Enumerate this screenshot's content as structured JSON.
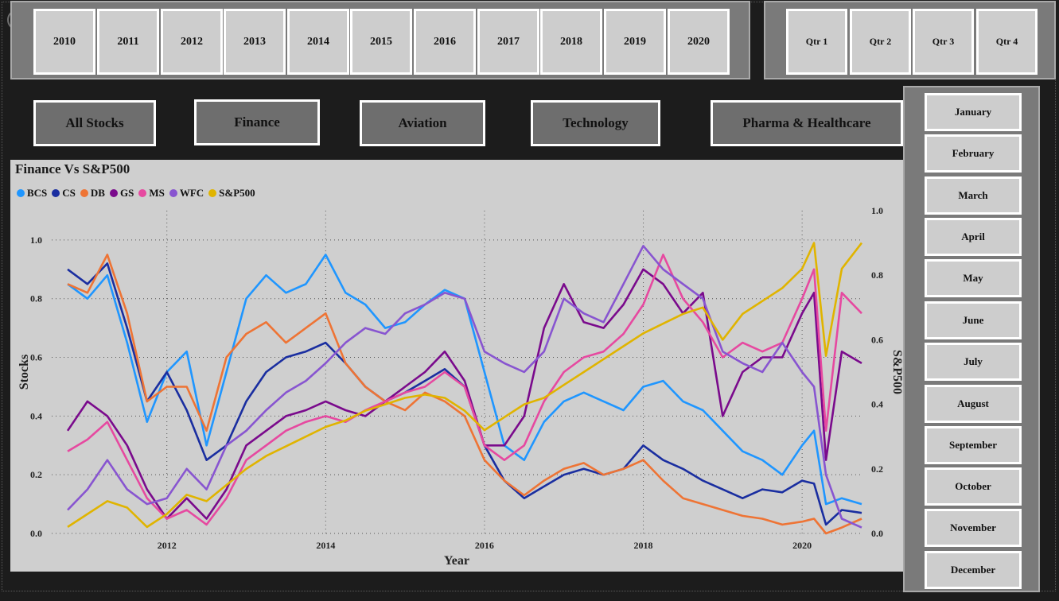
{
  "years": [
    "2010",
    "2011",
    "2012",
    "2013",
    "2014",
    "2015",
    "2016",
    "2017",
    "2018",
    "2019",
    "2020"
  ],
  "quarters": [
    "Qtr 1",
    "Qtr 2",
    "Qtr 3",
    "Qtr 4"
  ],
  "sectors": [
    "All Stocks",
    "Finance",
    "Aviation",
    "Technology",
    "Pharma & Healthcare"
  ],
  "months": [
    "January",
    "February",
    "March",
    "April",
    "May",
    "June",
    "July",
    "August",
    "September",
    "October",
    "November",
    "December"
  ],
  "chart_data": {
    "type": "line",
    "title": "Finance Vs S&P500",
    "xlabel": "Year",
    "ylabel": "Stocks",
    "y2label": "S&P500",
    "xlim": [
      2010.55,
      2020.75
    ],
    "ylim": [
      0,
      1.1
    ],
    "y2lim": [
      0,
      1.0
    ],
    "x_ticks": [
      2012,
      2014,
      2016,
      2018,
      2020
    ],
    "x_tick_labels": [
      "2012",
      "2014",
      "2016",
      "2018",
      "2020"
    ],
    "y_ticks": [
      0,
      0.2,
      0.4,
      0.6,
      0.8,
      1.0
    ],
    "y_tick_labels": [
      "0.0",
      "0.2",
      "0.4",
      "0.6",
      "0.8",
      "1.0"
    ],
    "y2_ticks": [
      0,
      0.2,
      0.4,
      0.6,
      0.8,
      1.0
    ],
    "y2_tick_labels": [
      "0.0",
      "0.2",
      "0.4",
      "0.6",
      "0.8",
      "1.0"
    ],
    "grid": "dotted",
    "legend_position": "top-left",
    "series": [
      {
        "name": "BCS",
        "axis": "left",
        "color": "#1f96ff",
        "x": [
          2010.75,
          2011.0,
          2011.25,
          2011.5,
          2011.75,
          2012.0,
          2012.25,
          2012.5,
          2012.75,
          2013.0,
          2013.25,
          2013.5,
          2013.75,
          2014.0,
          2014.25,
          2014.5,
          2014.75,
          2015.0,
          2015.25,
          2015.5,
          2015.75,
          2016.0,
          2016.25,
          2016.5,
          2016.75,
          2017.0,
          2017.25,
          2017.5,
          2017.75,
          2018.0,
          2018.25,
          2018.5,
          2018.75,
          2019.0,
          2019.25,
          2019.5,
          2019.75,
          2020.0,
          2020.15,
          2020.3,
          2020.5,
          2020.75
        ],
        "y": [
          0.85,
          0.8,
          0.88,
          0.65,
          0.38,
          0.55,
          0.62,
          0.3,
          0.55,
          0.8,
          0.88,
          0.82,
          0.85,
          0.95,
          0.82,
          0.78,
          0.7,
          0.72,
          0.78,
          0.83,
          0.8,
          0.55,
          0.3,
          0.25,
          0.38,
          0.45,
          0.48,
          0.45,
          0.42,
          0.5,
          0.52,
          0.45,
          0.42,
          0.35,
          0.28,
          0.25,
          0.2,
          0.3,
          0.35,
          0.1,
          0.12,
          0.1
        ]
      },
      {
        "name": "CS",
        "axis": "left",
        "color": "#1a2ea0",
        "x": [
          2010.75,
          2011.0,
          2011.25,
          2011.5,
          2011.75,
          2012.0,
          2012.25,
          2012.5,
          2012.75,
          2013.0,
          2013.25,
          2013.5,
          2013.75,
          2014.0,
          2014.25,
          2014.5,
          2014.75,
          2015.0,
          2015.25,
          2015.5,
          2015.75,
          2016.0,
          2016.25,
          2016.5,
          2016.75,
          2017.0,
          2017.25,
          2017.5,
          2017.75,
          2018.0,
          2018.25,
          2018.5,
          2018.75,
          2019.0,
          2019.25,
          2019.5,
          2019.75,
          2020.0,
          2020.15,
          2020.3,
          2020.5,
          2020.75
        ],
        "y": [
          0.9,
          0.85,
          0.92,
          0.7,
          0.45,
          0.55,
          0.42,
          0.25,
          0.3,
          0.45,
          0.55,
          0.6,
          0.62,
          0.65,
          0.58,
          0.5,
          0.45,
          0.48,
          0.52,
          0.56,
          0.5,
          0.3,
          0.18,
          0.12,
          0.16,
          0.2,
          0.22,
          0.2,
          0.22,
          0.3,
          0.25,
          0.22,
          0.18,
          0.15,
          0.12,
          0.15,
          0.14,
          0.18,
          0.17,
          0.03,
          0.08,
          0.07
        ]
      },
      {
        "name": "DB",
        "axis": "left",
        "color": "#ee7435",
        "x": [
          2010.75,
          2011.0,
          2011.25,
          2011.5,
          2011.75,
          2012.0,
          2012.25,
          2012.5,
          2012.75,
          2013.0,
          2013.25,
          2013.5,
          2013.75,
          2014.0,
          2014.25,
          2014.5,
          2014.75,
          2015.0,
          2015.25,
          2015.5,
          2015.75,
          2016.0,
          2016.25,
          2016.5,
          2016.75,
          2017.0,
          2017.25,
          2017.5,
          2017.75,
          2018.0,
          2018.25,
          2018.5,
          2018.75,
          2019.0,
          2019.25,
          2019.5,
          2019.75,
          2020.0,
          2020.15,
          2020.3,
          2020.5,
          2020.75
        ],
        "y": [
          0.85,
          0.82,
          0.95,
          0.75,
          0.45,
          0.5,
          0.5,
          0.35,
          0.6,
          0.68,
          0.72,
          0.65,
          0.7,
          0.75,
          0.58,
          0.5,
          0.45,
          0.42,
          0.48,
          0.45,
          0.4,
          0.25,
          0.18,
          0.13,
          0.18,
          0.22,
          0.24,
          0.2,
          0.22,
          0.25,
          0.18,
          0.12,
          0.1,
          0.08,
          0.06,
          0.05,
          0.03,
          0.04,
          0.05,
          0.0,
          0.02,
          0.05
        ]
      },
      {
        "name": "GS",
        "axis": "left",
        "color": "#7a0a8c",
        "x": [
          2010.75,
          2011.0,
          2011.25,
          2011.5,
          2011.75,
          2012.0,
          2012.25,
          2012.5,
          2012.75,
          2013.0,
          2013.25,
          2013.5,
          2013.75,
          2014.0,
          2014.25,
          2014.5,
          2014.75,
          2015.0,
          2015.25,
          2015.5,
          2015.75,
          2016.0,
          2016.25,
          2016.5,
          2016.75,
          2017.0,
          2017.25,
          2017.5,
          2017.75,
          2018.0,
          2018.25,
          2018.5,
          2018.75,
          2019.0,
          2019.25,
          2019.5,
          2019.75,
          2020.0,
          2020.15,
          2020.3,
          2020.5,
          2020.75
        ],
        "y": [
          0.35,
          0.45,
          0.4,
          0.3,
          0.15,
          0.05,
          0.12,
          0.05,
          0.15,
          0.3,
          0.35,
          0.4,
          0.42,
          0.45,
          0.42,
          0.4,
          0.45,
          0.5,
          0.55,
          0.62,
          0.52,
          0.3,
          0.3,
          0.4,
          0.7,
          0.85,
          0.72,
          0.7,
          0.78,
          0.9,
          0.85,
          0.75,
          0.82,
          0.4,
          0.55,
          0.6,
          0.6,
          0.75,
          0.82,
          0.25,
          0.62,
          0.58
        ]
      },
      {
        "name": "MS",
        "axis": "left",
        "color": "#e649a0",
        "x": [
          2010.75,
          2011.0,
          2011.25,
          2011.5,
          2011.75,
          2012.0,
          2012.25,
          2012.5,
          2012.75,
          2013.0,
          2013.25,
          2013.5,
          2013.75,
          2014.0,
          2014.25,
          2014.5,
          2014.75,
          2015.0,
          2015.25,
          2015.5,
          2015.75,
          2016.0,
          2016.25,
          2016.5,
          2016.75,
          2017.0,
          2017.25,
          2017.5,
          2017.75,
          2018.0,
          2018.25,
          2018.5,
          2018.75,
          2019.0,
          2019.25,
          2019.5,
          2019.75,
          2020.0,
          2020.15,
          2020.3,
          2020.5,
          2020.75
        ],
        "y": [
          0.28,
          0.32,
          0.38,
          0.25,
          0.12,
          0.05,
          0.08,
          0.03,
          0.12,
          0.25,
          0.3,
          0.35,
          0.38,
          0.4,
          0.38,
          0.42,
          0.45,
          0.48,
          0.5,
          0.55,
          0.5,
          0.3,
          0.25,
          0.3,
          0.45,
          0.55,
          0.6,
          0.62,
          0.68,
          0.78,
          0.95,
          0.8,
          0.72,
          0.6,
          0.65,
          0.62,
          0.65,
          0.8,
          0.9,
          0.35,
          0.82,
          0.75
        ]
      },
      {
        "name": "WFC",
        "axis": "left",
        "color": "#8855d0",
        "x": [
          2010.75,
          2011.0,
          2011.25,
          2011.5,
          2011.75,
          2012.0,
          2012.25,
          2012.5,
          2012.75,
          2013.0,
          2013.25,
          2013.5,
          2013.75,
          2014.0,
          2014.25,
          2014.5,
          2014.75,
          2015.0,
          2015.25,
          2015.5,
          2015.75,
          2016.0,
          2016.25,
          2016.5,
          2016.75,
          2017.0,
          2017.25,
          2017.5,
          2017.75,
          2018.0,
          2018.25,
          2018.5,
          2018.75,
          2019.0,
          2019.25,
          2019.5,
          2019.75,
          2020.0,
          2020.15,
          2020.3,
          2020.5,
          2020.75
        ],
        "y": [
          0.08,
          0.15,
          0.25,
          0.15,
          0.1,
          0.12,
          0.22,
          0.15,
          0.3,
          0.35,
          0.42,
          0.48,
          0.52,
          0.58,
          0.65,
          0.7,
          0.68,
          0.75,
          0.78,
          0.82,
          0.8,
          0.62,
          0.58,
          0.55,
          0.62,
          0.8,
          0.75,
          0.72,
          0.85,
          0.98,
          0.9,
          0.85,
          0.8,
          0.62,
          0.58,
          0.55,
          0.65,
          0.55,
          0.5,
          0.2,
          0.05,
          0.02
        ]
      },
      {
        "name": "S&P500",
        "axis": "right",
        "color": "#e0b400",
        "x": [
          2010.75,
          2011.0,
          2011.25,
          2011.5,
          2011.75,
          2012.0,
          2012.25,
          2012.5,
          2012.75,
          2013.0,
          2013.25,
          2013.5,
          2013.75,
          2014.0,
          2014.25,
          2014.5,
          2014.75,
          2015.0,
          2015.25,
          2015.5,
          2015.75,
          2016.0,
          2016.25,
          2016.5,
          2016.75,
          2017.0,
          2017.25,
          2017.5,
          2017.75,
          2018.0,
          2018.25,
          2018.5,
          2018.75,
          2019.0,
          2019.25,
          2019.5,
          2019.75,
          2020.0,
          2020.15,
          2020.3,
          2020.5,
          2020.75
        ],
        "y": [
          0.02,
          0.06,
          0.1,
          0.08,
          0.02,
          0.06,
          0.12,
          0.1,
          0.15,
          0.2,
          0.24,
          0.27,
          0.3,
          0.33,
          0.35,
          0.38,
          0.4,
          0.42,
          0.43,
          0.42,
          0.38,
          0.32,
          0.36,
          0.4,
          0.42,
          0.46,
          0.5,
          0.54,
          0.58,
          0.62,
          0.65,
          0.68,
          0.7,
          0.6,
          0.68,
          0.72,
          0.76,
          0.82,
          0.9,
          0.55,
          0.82,
          0.9
        ]
      }
    ]
  }
}
